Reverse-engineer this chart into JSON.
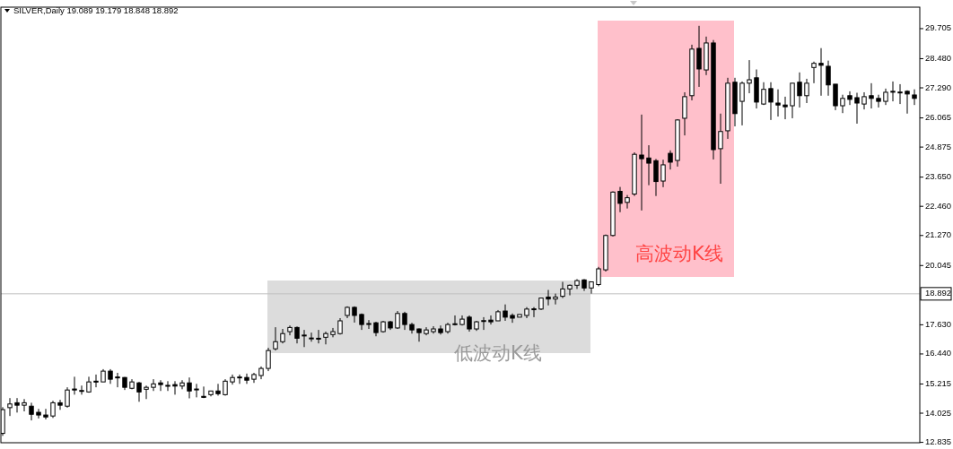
{
  "chart_data": {
    "type": "candlestick",
    "title": "SILVER,Daily 19.089 19.179 18.848 18.892",
    "categories": [
      null,
      null,
      null,
      null,
      null,
      null,
      null,
      null,
      null,
      null,
      null,
      null,
      null,
      null,
      null,
      null,
      null,
      null,
      null,
      null,
      null,
      null,
      null,
      null,
      null,
      null,
      null,
      null,
      null,
      null,
      null,
      null,
      null,
      null,
      null,
      null,
      null,
      null,
      null,
      null,
      null,
      null,
      null,
      null,
      null,
      null,
      null,
      null,
      null,
      null,
      null,
      null,
      null,
      null,
      null,
      null,
      null,
      null,
      null,
      null,
      null,
      null,
      null,
      null,
      null,
      null,
      null,
      null,
      null,
      null,
      null,
      null,
      null,
      null,
      null,
      null,
      null,
      null,
      null,
      null,
      null,
      null,
      null,
      null,
      null,
      null,
      null,
      null,
      null,
      null,
      null,
      null,
      null,
      null,
      null,
      null,
      null,
      null,
      null,
      null,
      null,
      null,
      null,
      null,
      null,
      null,
      null,
      null,
      null,
      null,
      null,
      null,
      null,
      null,
      null,
      null,
      null,
      null,
      null,
      null,
      null,
      null,
      null,
      null,
      null,
      null,
      null,
      null
    ],
    "ohlc": [
      [
        13.2,
        14.27,
        13.1,
        14.17
      ],
      [
        14.25,
        14.64,
        13.91,
        14.4
      ],
      [
        14.45,
        14.64,
        14.05,
        14.35
      ],
      [
        14.35,
        14.6,
        14.1,
        14.45
      ],
      [
        14.31,
        14.45,
        13.73,
        13.98
      ],
      [
        14.06,
        14.2,
        13.81,
        13.95
      ],
      [
        13.95,
        14.2,
        13.77,
        13.87
      ],
      [
        13.91,
        14.53,
        13.83,
        14.45
      ],
      [
        14.45,
        14.57,
        14.16,
        14.35
      ],
      [
        14.31,
        15.08,
        14.25,
        14.97
      ],
      [
        15.01,
        15.51,
        14.78,
        14.97
      ],
      [
        14.93,
        15.15,
        14.78,
        14.95
      ],
      [
        14.89,
        15.51,
        14.86,
        15.3
      ],
      [
        15.33,
        15.6,
        15.08,
        15.3
      ],
      [
        15.3,
        15.82,
        15.3,
        15.74
      ],
      [
        15.74,
        15.82,
        15.22,
        15.41
      ],
      [
        15.5,
        15.67,
        15.08,
        15.48
      ],
      [
        15.48,
        15.5,
        14.97,
        15.08
      ],
      [
        15.04,
        15.41,
        15.0,
        15.3
      ],
      [
        15.26,
        15.3,
        14.49,
        14.89
      ],
      [
        15.0,
        15.15,
        14.6,
        15.08
      ],
      [
        15.08,
        15.41,
        14.93,
        15.22
      ],
      [
        15.26,
        15.37,
        14.93,
        15.19
      ],
      [
        15.15,
        15.33,
        14.93,
        15.16
      ],
      [
        15.19,
        15.33,
        14.78,
        15.13
      ],
      [
        15.13,
        15.37,
        15.0,
        15.26
      ],
      [
        15.26,
        15.48,
        14.63,
        14.93
      ],
      [
        15.0,
        15.22,
        14.67,
        15.01
      ],
      [
        14.71,
        15.11,
        14.64,
        14.67
      ],
      [
        14.78,
        14.93,
        14.71,
        14.93
      ],
      [
        14.93,
        15.22,
        14.74,
        14.82
      ],
      [
        14.78,
        15.41,
        14.74,
        15.33
      ],
      [
        15.3,
        15.6,
        15.19,
        15.48
      ],
      [
        15.48,
        15.6,
        15.22,
        15.5
      ],
      [
        15.48,
        15.64,
        15.22,
        15.37
      ],
      [
        15.41,
        15.67,
        15.26,
        15.6
      ],
      [
        15.56,
        15.93,
        15.41,
        15.85
      ],
      [
        15.85,
        16.69,
        15.74,
        16.58
      ],
      [
        16.65,
        17.53,
        16.58,
        16.94
      ],
      [
        16.94,
        17.46,
        16.87,
        17.27
      ],
      [
        17.35,
        17.6,
        17.2,
        17.52
      ],
      [
        17.52,
        17.56,
        16.87,
        17.08
      ],
      [
        17.2,
        17.42,
        16.72,
        17.21
      ],
      [
        17.08,
        17.31,
        16.94,
        17.09
      ],
      [
        17.08,
        17.42,
        16.87,
        17.05
      ],
      [
        17.12,
        17.35,
        16.83,
        17.27
      ],
      [
        17.23,
        17.5,
        17.12,
        17.35
      ],
      [
        17.27,
        17.9,
        17.23,
        17.79
      ],
      [
        18.01,
        18.38,
        17.9,
        18.34
      ],
      [
        18.34,
        18.38,
        17.72,
        18.01
      ],
      [
        18.05,
        18.09,
        17.42,
        17.64
      ],
      [
        17.67,
        17.82,
        17.46,
        17.68
      ],
      [
        17.71,
        17.75,
        17.16,
        17.31
      ],
      [
        17.35,
        17.79,
        17.31,
        17.75
      ],
      [
        17.75,
        17.79,
        17.42,
        17.5
      ],
      [
        17.5,
        18.19,
        17.46,
        18.09
      ],
      [
        18.09,
        18.16,
        17.42,
        17.64
      ],
      [
        17.64,
        17.71,
        17.27,
        17.42
      ],
      [
        17.46,
        17.48,
        16.94,
        17.31
      ],
      [
        17.27,
        17.53,
        17.2,
        17.42
      ],
      [
        17.35,
        17.57,
        17.27,
        17.46
      ],
      [
        17.46,
        17.6,
        17.23,
        17.31
      ],
      [
        17.35,
        17.71,
        17.27,
        17.64
      ],
      [
        17.64,
        18.01,
        17.6,
        17.67
      ],
      [
        17.64,
        18.01,
        17.6,
        17.86
      ],
      [
        17.94,
        18.01,
        17.35,
        17.46
      ],
      [
        17.46,
        17.79,
        17.38,
        17.75
      ],
      [
        17.79,
        17.94,
        17.42,
        17.8
      ],
      [
        17.82,
        18.01,
        17.64,
        17.75
      ],
      [
        17.79,
        18.23,
        17.79,
        18.16
      ],
      [
        18.19,
        18.46,
        17.79,
        17.94
      ],
      [
        18.01,
        18.09,
        17.71,
        17.9
      ],
      [
        17.94,
        18.05,
        17.94,
        18.05
      ],
      [
        18.01,
        18.35,
        17.9,
        18.27
      ],
      [
        18.27,
        18.35,
        17.94,
        18.28
      ],
      [
        18.27,
        18.72,
        18.23,
        18.72
      ],
      [
        18.76,
        19.05,
        18.42,
        18.68
      ],
      [
        18.68,
        18.9,
        18.46,
        18.76
      ],
      [
        18.79,
        19.38,
        18.72,
        19.09
      ],
      [
        19.09,
        19.27,
        18.83,
        19.24
      ],
      [
        19.24,
        19.49,
        19.09,
        19.43
      ],
      [
        19.46,
        19.49,
        19.01,
        19.13
      ],
      [
        19.13,
        19.38,
        18.9,
        19.38
      ],
      [
        19.27,
        19.99,
        19.2,
        19.91
      ],
      [
        19.87,
        21.31,
        19.8,
        21.27
      ],
      [
        21.27,
        23.07,
        21.23,
        23.04
      ],
      [
        23.07,
        23.25,
        22.22,
        22.58
      ],
      [
        22.62,
        22.92,
        22.37,
        22.81
      ],
      [
        22.96,
        24.66,
        22.88,
        24.58
      ],
      [
        24.55,
        26.2,
        22.29,
        24.4
      ],
      [
        24.43,
        24.95,
        23.32,
        24.22
      ],
      [
        24.32,
        24.39,
        22.88,
        23.47
      ],
      [
        23.49,
        24.36,
        23.24,
        24.15
      ],
      [
        24.62,
        24.74,
        23.96,
        24.26
      ],
      [
        24.33,
        26.01,
        24.08,
        25.98
      ],
      [
        26.05,
        27.11,
        25.35,
        26.93
      ],
      [
        26.97,
        29.05,
        26.78,
        28.87
      ],
      [
        28.9,
        29.82,
        27.33,
        28.06
      ],
      [
        28.02,
        29.38,
        27.81,
        29.12
      ],
      [
        29.12,
        29.24,
        24.37,
        24.77
      ],
      [
        24.81,
        26.24,
        23.38,
        25.51
      ],
      [
        25.54,
        27.7,
        25.21,
        27.48
      ],
      [
        27.52,
        27.7,
        25.72,
        26.24
      ],
      [
        26.74,
        27.55,
        25.76,
        27.48
      ],
      [
        27.48,
        28.42,
        27.07,
        27.62
      ],
      [
        27.7,
        28.04,
        26.45,
        26.71
      ],
      [
        26.63,
        27.52,
        26.59,
        27.23
      ],
      [
        27.26,
        27.52,
        25.98,
        26.71
      ],
      [
        26.67,
        27.23,
        26.12,
        26.59
      ],
      [
        26.59,
        26.93,
        26.01,
        26.52
      ],
      [
        26.56,
        27.48,
        26.05,
        27.48
      ],
      [
        27.52,
        27.92,
        26.49,
        26.97
      ],
      [
        26.97,
        27.66,
        26.67,
        27.48
      ],
      [
        28.12,
        28.36,
        27.48,
        28.29
      ],
      [
        28.29,
        28.91,
        26.97,
        28.21
      ],
      [
        28.17,
        28.4,
        26.97,
        27.41
      ],
      [
        27.44,
        27.44,
        26.38,
        26.56
      ],
      [
        26.56,
        27.01,
        26.26,
        26.86
      ],
      [
        26.97,
        27.15,
        26.59,
        26.82
      ],
      [
        26.89,
        27.09,
        25.83,
        26.67
      ],
      [
        26.63,
        27.11,
        26.41,
        26.93
      ],
      [
        26.97,
        27.48,
        26.45,
        26.86
      ],
      [
        26.86,
        27.01,
        26.49,
        26.74
      ],
      [
        26.74,
        27.26,
        26.59,
        27.11
      ],
      [
        27.13,
        27.55,
        26.74,
        27.15
      ],
      [
        27.11,
        27.44,
        26.63,
        27.12
      ],
      [
        27.15,
        27.19,
        26.24,
        27.04
      ],
      [
        27.0,
        27.23,
        26.59,
        26.86
      ]
    ],
    "ylim": [
      12.82,
      30.58
    ],
    "yticks": [
      {
        "value": 12.835,
        "label": "12.835"
      },
      {
        "value": 14.025,
        "label": "14.025"
      },
      {
        "value": 15.215,
        "label": "15.215"
      },
      {
        "value": 16.44,
        "label": "16.440"
      },
      {
        "value": 17.63,
        "label": "17.630"
      },
      {
        "value": 20.045,
        "label": "20.045"
      },
      {
        "value": 21.27,
        "label": "21.270"
      },
      {
        "value": 22.46,
        "label": "22.460"
      },
      {
        "value": 23.65,
        "label": "23.650"
      },
      {
        "value": 24.875,
        "label": "24.875"
      },
      {
        "value": 26.065,
        "label": "26.065"
      },
      {
        "value": 27.29,
        "label": "27.290"
      },
      {
        "value": 28.48,
        "label": "28.480"
      },
      {
        "value": 29.705,
        "label": "29.705"
      }
    ],
    "tick_labels": "y",
    "grid": false,
    "ref_lines": [
      {
        "axis": "y",
        "value": 18.892,
        "label": "18.892",
        "color": "#c0c0c0"
      }
    ],
    "annotations": [
      "低波动K线",
      "高波动K线"
    ]
  }
}
